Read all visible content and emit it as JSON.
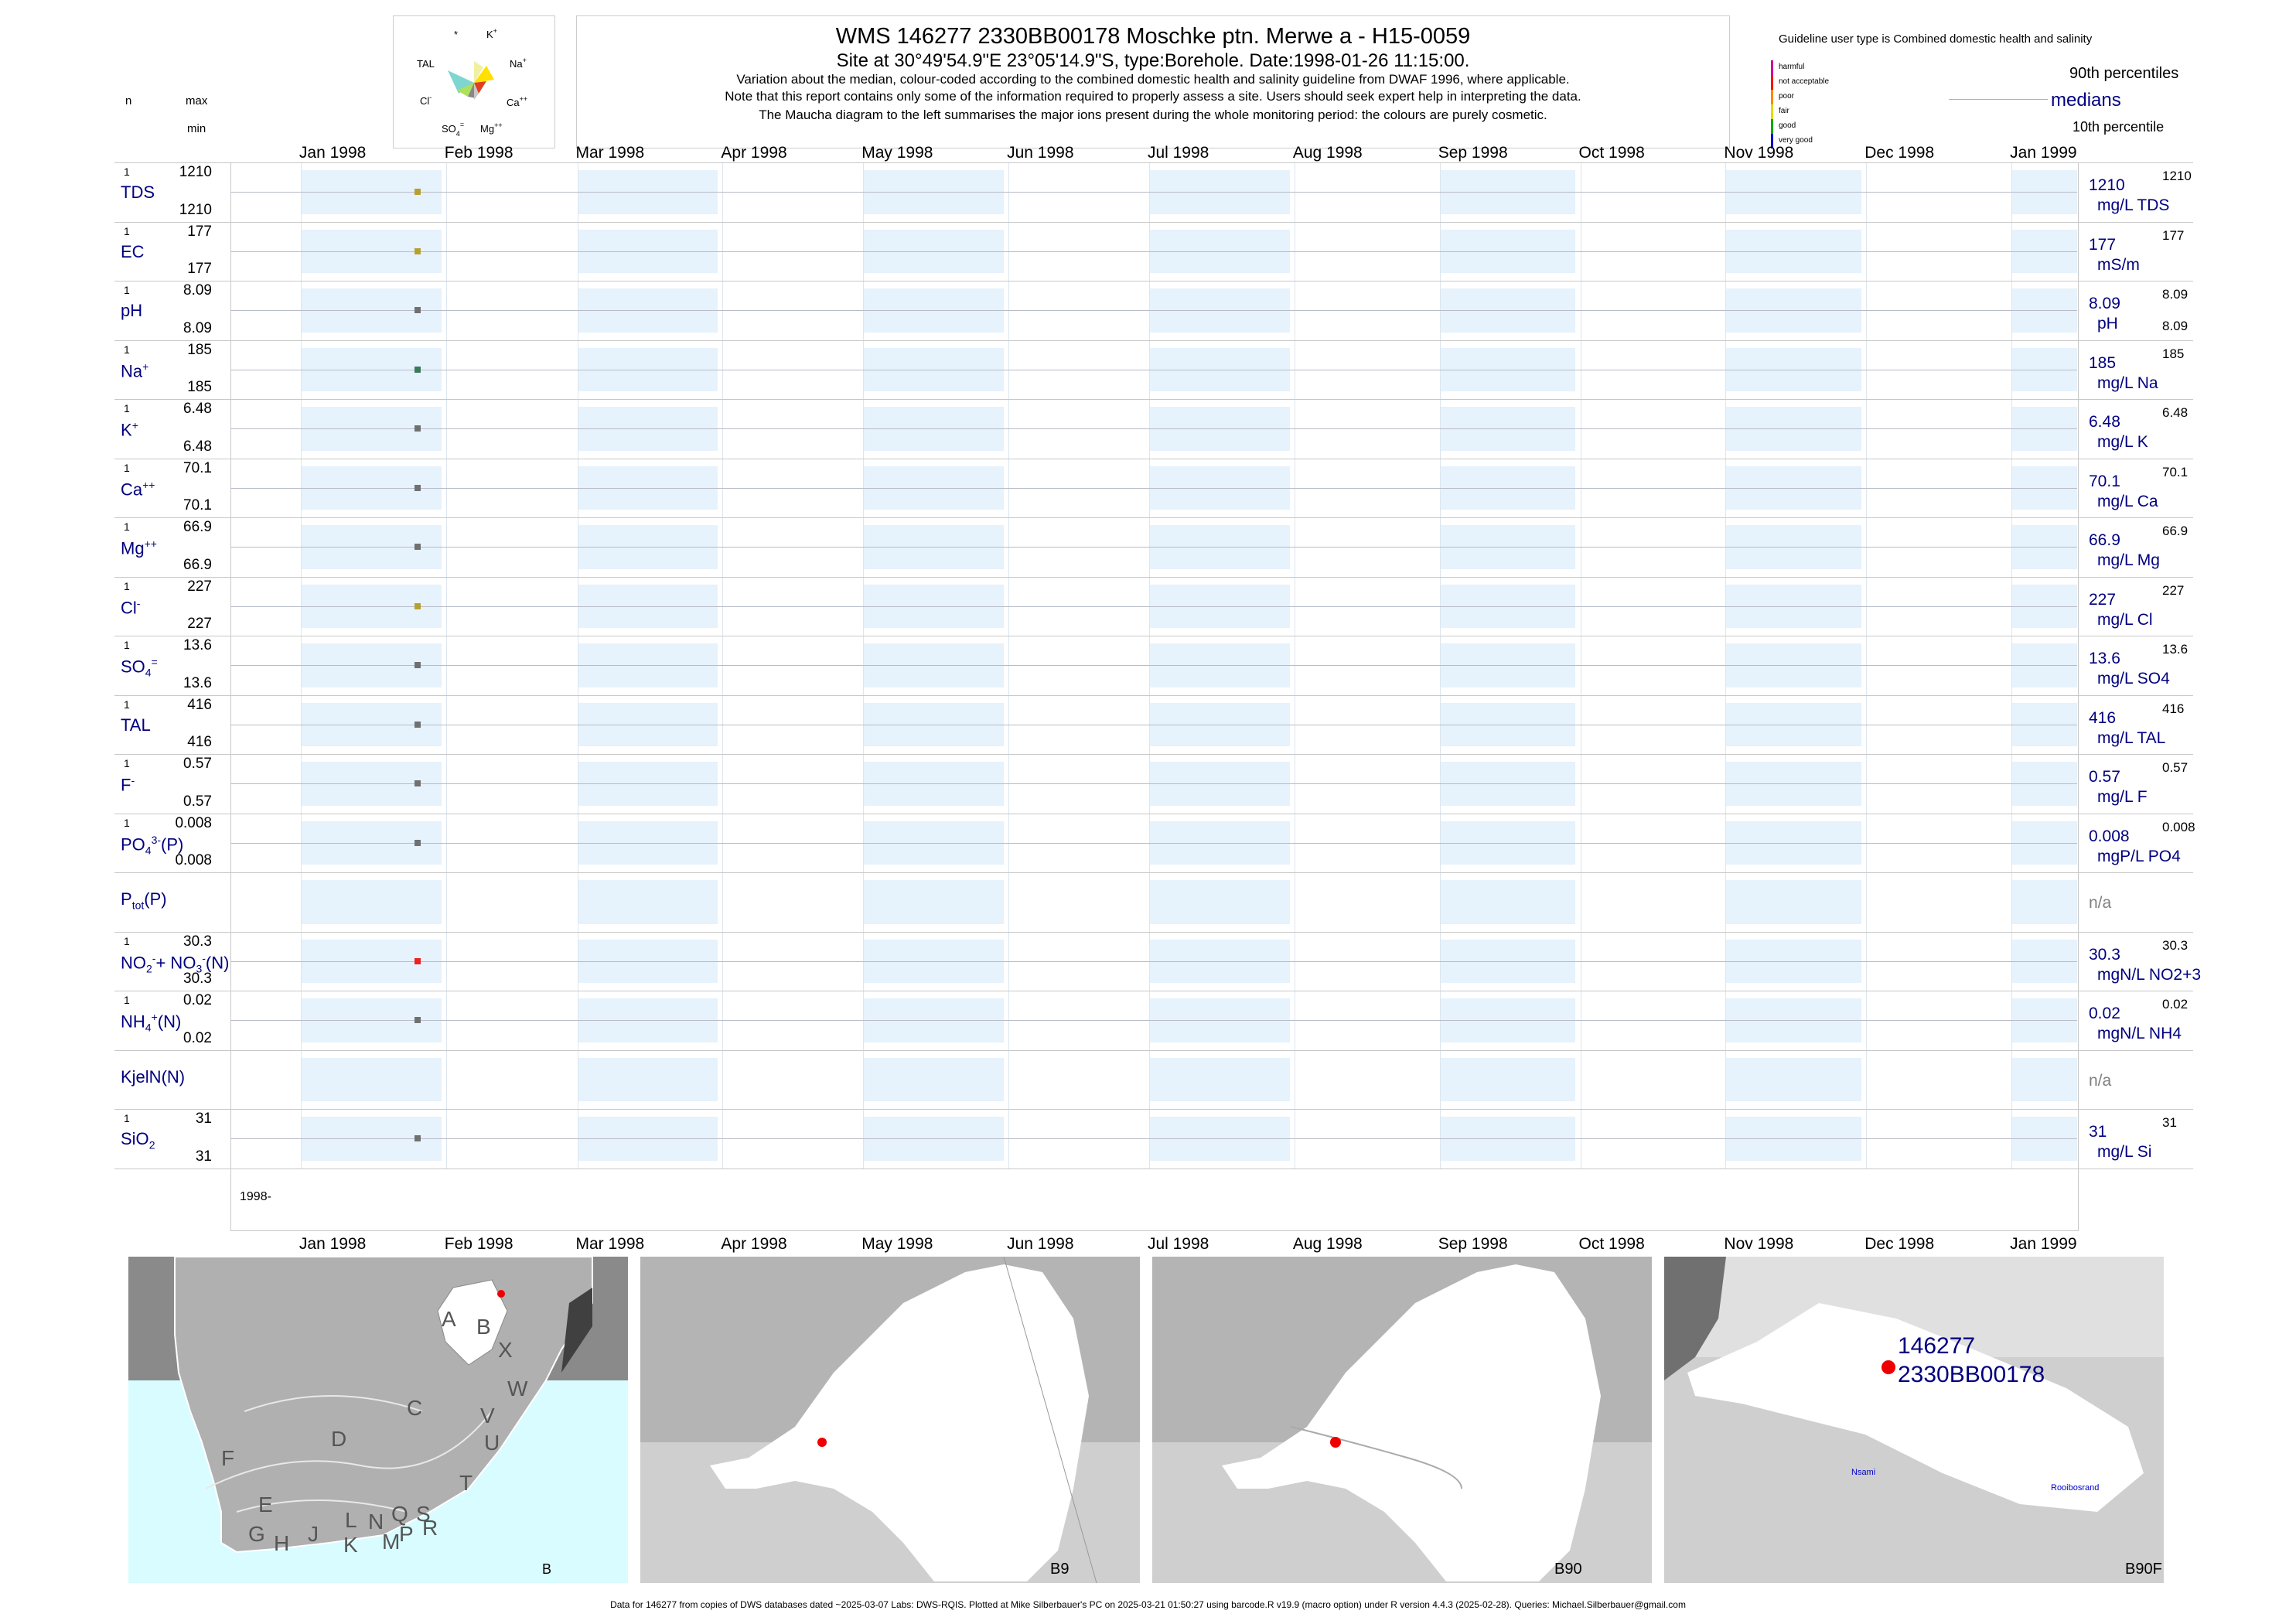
{
  "header": {
    "title": "WMS 146277 2330BB00178 Moschke ptn. Merwe a - H15-0059",
    "site": "Site at 30°49'54.9\"E 23°05'14.9\"S, type:Borehole. Date:1998-01-26 11:15:00.",
    "note1": "Variation about the median,  colour-coded according to the combined domestic health and salinity guideline from DWAF 1996, where applicable.",
    "note2": "Note that this report contains only some of the information required to properly assess a site. Users should seek expert help in interpreting the data.",
    "note3": "The Maucha diagram to the left summarises the major ions present during the whole monitoring period: the colours are purely cosmetic."
  },
  "left_header": {
    "n": "n",
    "max": "max",
    "min": "min"
  },
  "maucha": {
    "star": "*",
    "k": "K",
    "k_sup": "+",
    "tal": "TAL",
    "na": "Na",
    "na_sup": "+",
    "cl": "Cl",
    "cl_sup": "-",
    "ca": "Ca",
    "ca_sup": "++",
    "so4": "SO",
    "so4_sub": "4",
    "so4_sup": "=",
    "mg": "Mg",
    "mg_sup": "++"
  },
  "legend": {
    "guideline": "Guideline user type is Combined domestic health and salinity",
    "classes": [
      {
        "label": "harmful",
        "color": "#cc0099"
      },
      {
        "label": "not acceptable",
        "color": "#ff0000"
      },
      {
        "label": "poor",
        "color": "#ff8800"
      },
      {
        "label": "fair",
        "color": "#dddd00"
      },
      {
        "label": "good",
        "color": "#00aa00"
      },
      {
        "label": "very good",
        "color": "#0000cc"
      }
    ],
    "p90": "90th percentiles",
    "medians": "medians",
    "p10": "10th percentile"
  },
  "chart_data": {
    "type": "scatter",
    "x_axis": {
      "ticks": [
        "Jan 1998",
        "Feb 1998",
        "Mar 1998",
        "Apr 1998",
        "May 1998",
        "Jun 1998",
        "Jul 1998",
        "Aug 1998",
        "Sep 1998",
        "Oct 1998",
        "Nov 1998",
        "Dec 1998",
        "Jan 1999"
      ],
      "range": [
        "1997-12-17",
        "1999-01-15"
      ],
      "year_label": "1998-"
    },
    "sample_date": "1998-01-26",
    "panels": [
      {
        "name": "TDS",
        "sup": "",
        "sub": "",
        "n": "1",
        "max": "1210",
        "min": "1210",
        "median": "1210",
        "p90": "1210",
        "p10": "",
        "unit": "mg/L TDS",
        "value": 1210,
        "color": "#b8a030"
      },
      {
        "name": "EC",
        "sup": "",
        "sub": "",
        "n": "1",
        "max": "177",
        "min": "177",
        "median": "177",
        "p90": "177",
        "p10": "",
        "unit": "mS/m",
        "value": 177,
        "color": "#b8a030"
      },
      {
        "name": "pH",
        "sup": "",
        "sub": "",
        "n": "1",
        "max": "8.09",
        "min": "8.09",
        "median": "8.09",
        "p90": "8.09",
        "p10": "8.09",
        "unit": "pH",
        "value": 8.09,
        "color": "#707070"
      },
      {
        "name": "Na",
        "sup": "+",
        "sub": "",
        "n": "1",
        "max": "185",
        "min": "185",
        "median": "185",
        "p90": "185",
        "p10": "",
        "unit": "mg/L Na",
        "value": 185,
        "color": "#3a7a5a"
      },
      {
        "name": "K",
        "sup": "+",
        "sub": "",
        "n": "1",
        "max": "6.48",
        "min": "6.48",
        "median": "6.48",
        "p90": "6.48",
        "p10": "",
        "unit": "mg/L K",
        "value": 6.48,
        "color": "#707070"
      },
      {
        "name": "Ca",
        "sup": "++",
        "sub": "",
        "n": "1",
        "max": "70.1",
        "min": "70.1",
        "median": "70.1",
        "p90": "70.1",
        "p10": "",
        "unit": "mg/L Ca",
        "value": 70.1,
        "color": "#707070"
      },
      {
        "name": "Mg",
        "sup": "++",
        "sub": "",
        "n": "1",
        "max": "66.9",
        "min": "66.9",
        "median": "66.9",
        "p90": "66.9",
        "p10": "",
        "unit": "mg/L Mg",
        "value": 66.9,
        "color": "#707070"
      },
      {
        "name": "Cl",
        "sup": "-",
        "sub": "",
        "n": "1",
        "max": "227",
        "min": "227",
        "median": "227",
        "p90": "227",
        "p10": "",
        "unit": "mg/L Cl",
        "value": 227,
        "color": "#b8a030"
      },
      {
        "name": "SO",
        "sup": "=",
        "sub": "4",
        "n": "1",
        "max": "13.6",
        "min": "13.6",
        "median": "13.6",
        "p90": "13.6",
        "p10": "",
        "unit": "mg/L SO4",
        "value": 13.6,
        "color": "#707070"
      },
      {
        "name": "TAL",
        "sup": "",
        "sub": "",
        "n": "1",
        "max": "416",
        "min": "416",
        "median": "416",
        "p90": "416",
        "p10": "",
        "unit": "mg/L TAL",
        "value": 416,
        "color": "#707070"
      },
      {
        "name": "F",
        "sup": "-",
        "sub": "",
        "n": "1",
        "max": "0.57",
        "min": "0.57",
        "median": "0.57",
        "p90": "0.57",
        "p10": "",
        "unit": "mg/L F",
        "value": 0.57,
        "color": "#707070"
      },
      {
        "name": "PO",
        "sup": "3-",
        "sub": "4",
        "suffix": "(P)",
        "n": "1",
        "max": "0.008",
        "min": "0.008",
        "median": "0.008",
        "p90": "0.008",
        "p10": "",
        "unit": "mgP/L PO4",
        "value": 0.008,
        "color": "#707070"
      },
      {
        "name": "P",
        "sup": "",
        "sub": "tot",
        "suffix": "(P)",
        "n": "",
        "max": "",
        "min": "",
        "median": "n/a",
        "p90": "",
        "p10": "",
        "unit": "",
        "value": null,
        "color": ""
      },
      {
        "name": "NO",
        "sup": "-",
        "sub": "2",
        "suffix": "+ NO",
        "suffix_sup": "-",
        "suffix_sub": "3",
        "suffix2": "(N)",
        "n": "1",
        "max": "30.3",
        "min": "30.3",
        "median": "30.3",
        "p90": "30.3",
        "p10": "",
        "unit": "mgN/L NO2+3",
        "value": 30.3,
        "color": "#ee2020"
      },
      {
        "name": "NH",
        "sup": "+",
        "sub": "4",
        "suffix": "(N)",
        "n": "1",
        "max": "0.02",
        "min": "0.02",
        "median": "0.02",
        "p90": "0.02",
        "p10": "",
        "unit": "mgN/L NH4",
        "value": 0.02,
        "color": "#707070"
      },
      {
        "name": "KjelN(N)",
        "sup": "",
        "sub": "",
        "n": "",
        "max": "",
        "min": "",
        "median": "n/a",
        "p90": "",
        "p10": "",
        "unit": "",
        "value": null,
        "color": ""
      },
      {
        "name": "SiO",
        "sup": "",
        "sub": "2",
        "n": "1",
        "max": "31",
        "min": "31",
        "median": "31",
        "p90": "31",
        "p10": "",
        "unit": "mg/L Si",
        "value": 31,
        "color": "#707070"
      }
    ]
  },
  "maps": {
    "m1": {
      "label": "B",
      "regions": [
        "A",
        "B",
        "X",
        "W",
        "C",
        "V",
        "U",
        "D",
        "F",
        "T",
        "E",
        "L",
        "N",
        "Q",
        "S",
        "G",
        "H",
        "J",
        "K",
        "M",
        "P",
        "R"
      ]
    },
    "m2": {
      "label": "B9"
    },
    "m3": {
      "label": "B90"
    },
    "m4": {
      "label": "B90F",
      "site_id": "146277",
      "site_code": "2330BB00178",
      "place1": "Nsami",
      "place2": "Rooibosrand"
    }
  },
  "footer": "Data for 146277 from copies of DWS databases dated ~2025-03-07 Labs: DWS-RQIS. Plotted at Mike Silberbauer's PC on 2025-03-21 01:50:27 using barcode.R v19.9 (macro option) under R version 4.4.3 (2025-02-28). Queries: Michael.Silberbauer@gmail.com"
}
